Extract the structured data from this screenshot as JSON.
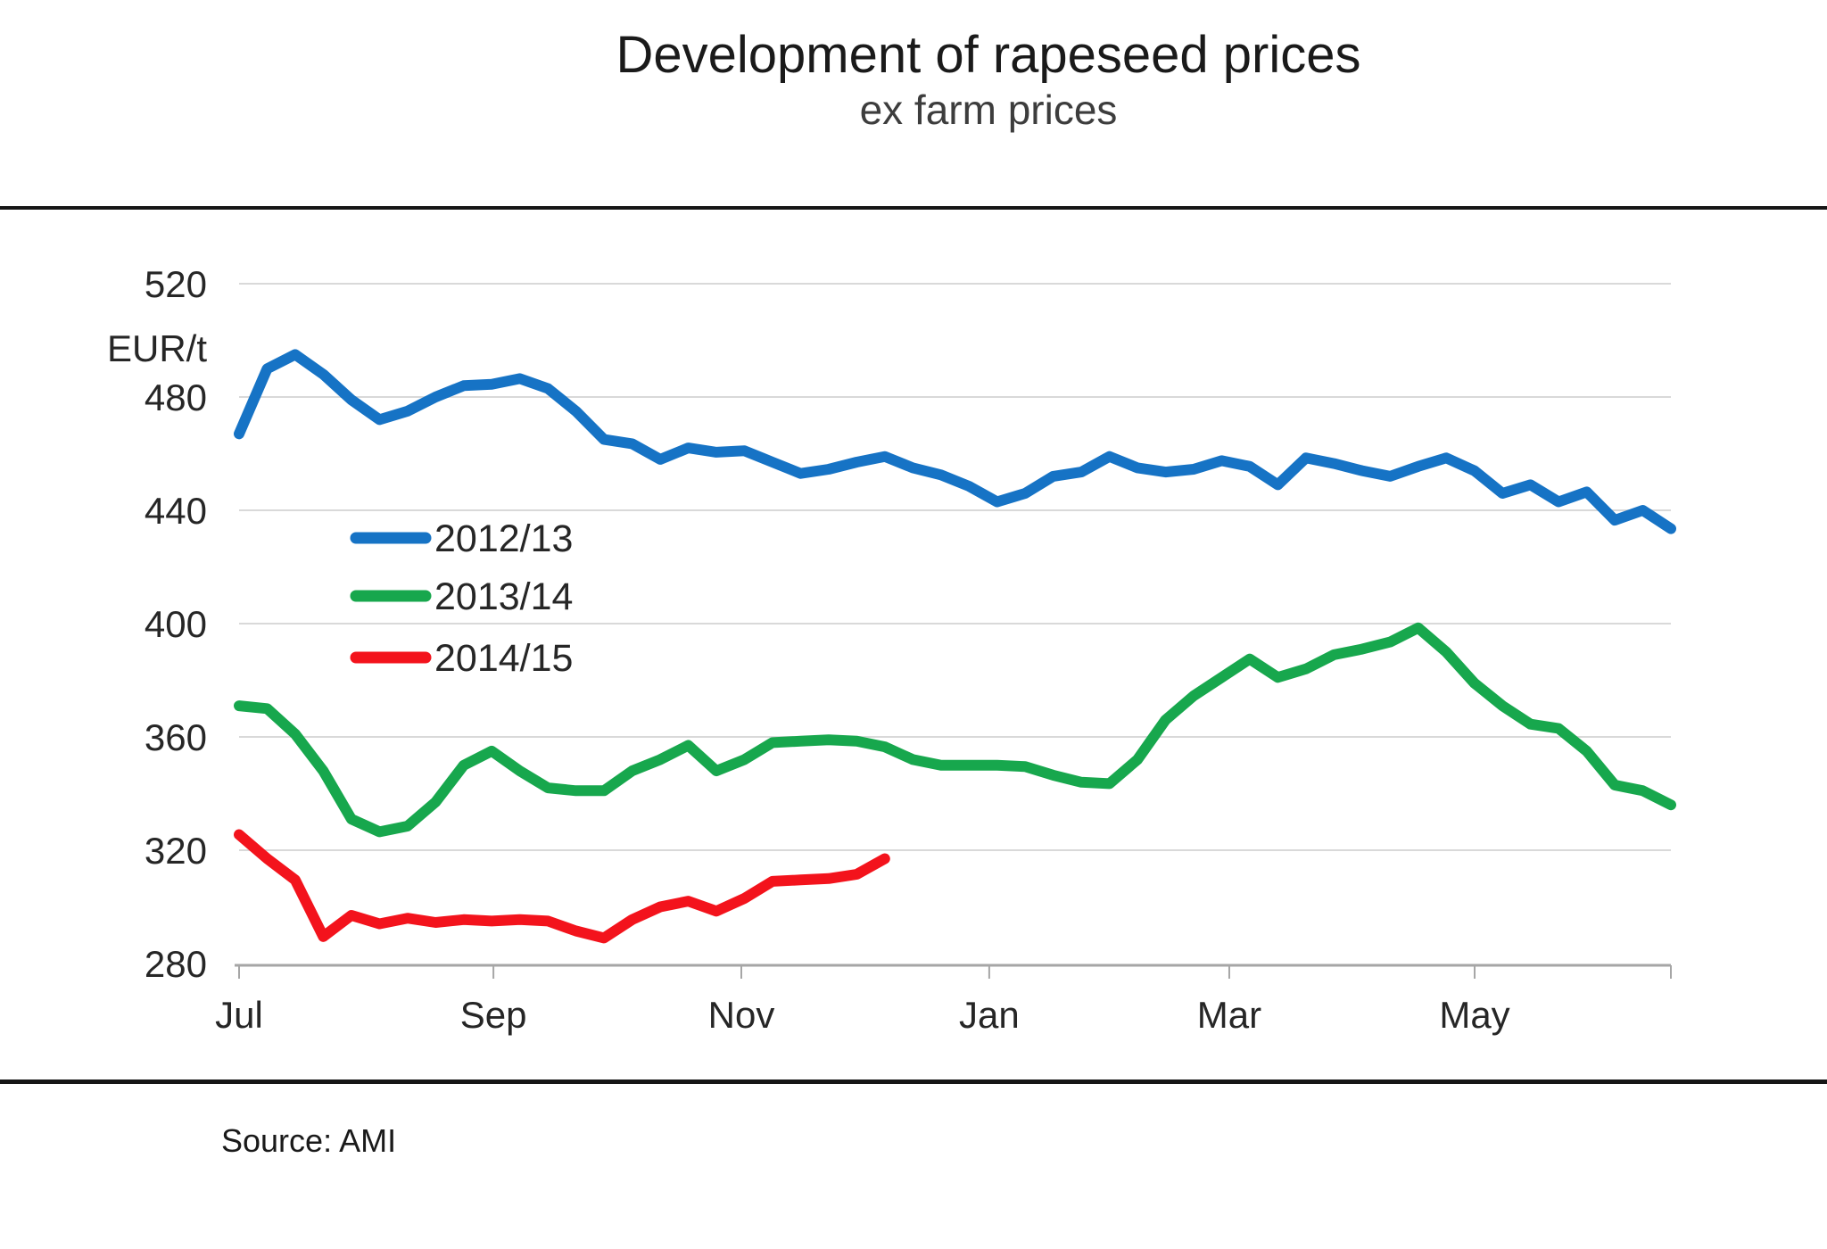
{
  "page": {
    "title": "Development of rapeseed prices",
    "subtitle": "ex farm prices",
    "source_note": "Source: AMI"
  },
  "chart_data": {
    "type": "line",
    "title": "Development of rapeseed prices",
    "subtitle": "ex farm prices",
    "ylabel": "EUR/t",
    "ylim": [
      280,
      520
    ],
    "y_ticks": [
      520,
      480,
      440,
      400,
      360,
      320,
      280
    ],
    "x_ticks": [
      {
        "label": "Jul",
        "week": 0
      },
      {
        "label": "Sep",
        "week": 9.06
      },
      {
        "label": "Nov",
        "week": 17.89
      },
      {
        "label": "Jan",
        "week": 26.72
      },
      {
        "label": "Mar",
        "week": 35.27
      },
      {
        "label": "May",
        "week": 44.01
      }
    ],
    "x_unit": "week of marketing year (Jul-Jun)",
    "grid": "horizontal",
    "legend_position": "inside-left",
    "source": "Source: AMI",
    "series": [
      {
        "name": "2012/13",
        "color": "#1673C5",
        "values": [
          467,
          490,
          495,
          488,
          479,
          472,
          475,
          480,
          484,
          484.5,
          486.5,
          483,
          475,
          465,
          463.5,
          458,
          462,
          460.5,
          461,
          457,
          453,
          454.5,
          457,
          459,
          455,
          452.5,
          448.5,
          443,
          446,
          452,
          453.5,
          459,
          455,
          453.5,
          454.5,
          457.5,
          455.5,
          449,
          458.5,
          456.5,
          454,
          452,
          455.5,
          458.5,
          454,
          446,
          449,
          443,
          446.5,
          436.5,
          440,
          433.5
        ]
      },
      {
        "name": "2013/14",
        "color": "#17A74D",
        "values": [
          371,
          370,
          361,
          348,
          331,
          326.5,
          328.5,
          337,
          350,
          355,
          348,
          342,
          341,
          341,
          348,
          352,
          357,
          348,
          352,
          358,
          358.5,
          359,
          358.5,
          356.5,
          352,
          350,
          350,
          350,
          349.5,
          346.5,
          344,
          343.5,
          352,
          366,
          374.5,
          381,
          387.5,
          381,
          384,
          389,
          391,
          393.5,
          398.5,
          390,
          379,
          371,
          364.5,
          363,
          355,
          343,
          341,
          336
        ]
      },
      {
        "name": "2014/15",
        "color": "#F3131C",
        "values": [
          325.5,
          317,
          309.5,
          289.5,
          297,
          294,
          296,
          294.5,
          295.5,
          295,
          295.5,
          295,
          291.5,
          289,
          295.5,
          300,
          302,
          298.5,
          303,
          309,
          309.5,
          310,
          311.5,
          317
        ]
      }
    ]
  }
}
